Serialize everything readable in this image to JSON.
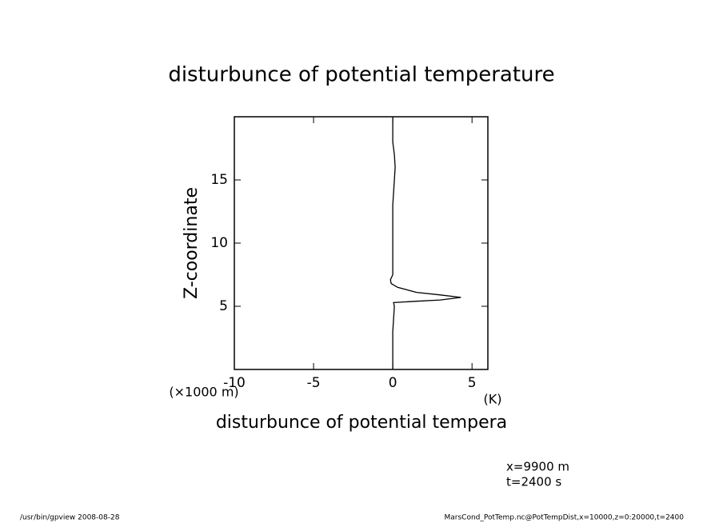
{
  "chart_data": {
    "type": "line",
    "title": "disturbunce of potential temperature",
    "xlabel": "disturbunce of potential tempera",
    "ylabel": "Z-coordinate",
    "xunit": "(K)",
    "yunit": "(×1000 m)",
    "x": [
      0,
      0,
      0,
      0,
      0.05,
      0.1,
      0.05,
      1.5,
      3,
      4.3,
      3,
      1.5,
      0.3,
      -0.1,
      -0.15,
      0,
      0,
      0,
      0,
      0.05,
      0.1,
      0.15,
      0.1,
      0,
      0,
      0
    ],
    "values": [
      0,
      1,
      2,
      3,
      4,
      5,
      5.3,
      5.4,
      5.5,
      5.7,
      5.9,
      6.1,
      6.5,
      6.8,
      7.1,
      7.5,
      9,
      11,
      13,
      14,
      15,
      16,
      17,
      18,
      19,
      20
    ],
    "color": "#000000",
    "xlim": [
      -10,
      6
    ],
    "xticks": [
      -10,
      -5,
      0,
      5
    ],
    "ylim": [
      0,
      20
    ],
    "yticks": [
      5,
      10,
      15
    ],
    "annotations": [
      "x=9900 m",
      "t=2400 s"
    ],
    "footer_left": "/usr/bin/gpview  2008-08-28",
    "footer_right": "MarsCond_PotTemp.nc@PotTempDist,x=10000,z=0:20000,t=2400"
  }
}
